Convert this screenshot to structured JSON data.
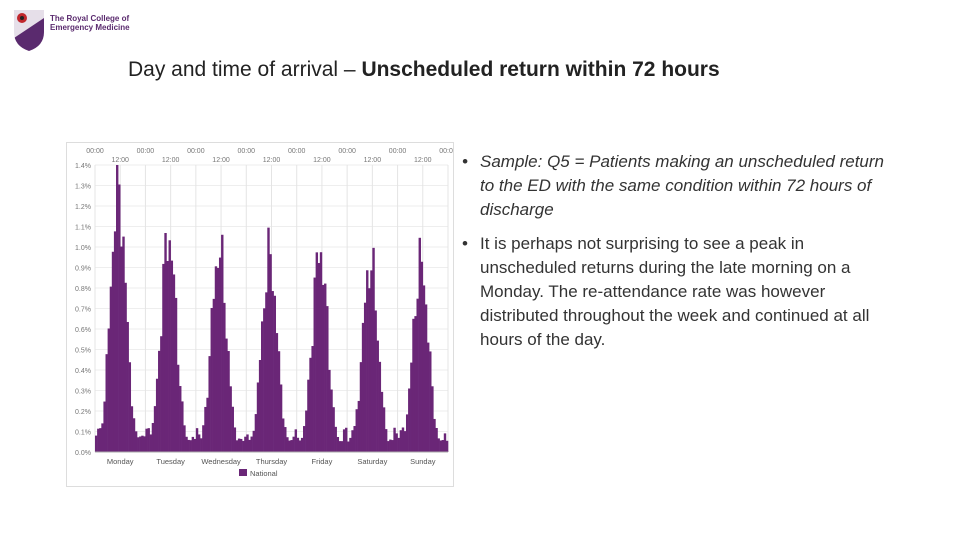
{
  "logo": {
    "line1": "The Royal College of",
    "line2": "Emergency Medicine"
  },
  "title": {
    "prefix": "Day and time of arrival – ",
    "bold": "Unscheduled return within 72 hours"
  },
  "bullets": [
    {
      "text": "Sample: Q5 = Patients making an unscheduled return to the ED with the same condition within 72 hours of discharge",
      "style": "italic"
    },
    {
      "text": "It is perhaps not surprising to see a peak in unscheduled returns during the late morning on a Monday. The re-attendance rate was however distributed throughout the week and continued at all hours of the day.",
      "style": "normal"
    }
  ],
  "colors": {
    "bar": "#6a2677",
    "accent": "#5a2a6e"
  },
  "chart_data": {
    "type": "bar",
    "ylim": [
      0,
      1.4
    ],
    "y_ticks": [
      "0.0%",
      "0.1%",
      "0.2%",
      "0.3%",
      "0.4%",
      "0.5%",
      "0.6%",
      "0.7%",
      "0.8%",
      "0.9%",
      "1.0%",
      "1.1%",
      "1.2%",
      "1.3%",
      "1.4%"
    ],
    "top_ticks": [
      "00:00",
      "12:00",
      "00:00",
      "12:00",
      "00:00",
      "12:00",
      "00:00",
      "12:00",
      "00:00",
      "12:00",
      "00:00",
      "12:00",
      "00:00",
      "12:00",
      "00:00"
    ],
    "days": [
      "Monday",
      "Tuesday",
      "Wednesday",
      "Thursday",
      "Friday",
      "Saturday",
      "Sunday"
    ],
    "day_peaks": [
      1.28,
      1.05,
      0.98,
      0.95,
      0.98,
      0.92,
      0.92
    ],
    "grid": true,
    "legend": {
      "label": "National",
      "position": "bottom-center"
    }
  }
}
